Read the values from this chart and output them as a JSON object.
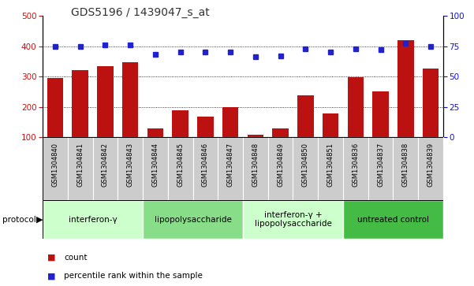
{
  "title": "GDS5196 / 1439047_s_at",
  "samples": [
    "GSM1304840",
    "GSM1304841",
    "GSM1304842",
    "GSM1304843",
    "GSM1304844",
    "GSM1304845",
    "GSM1304846",
    "GSM1304847",
    "GSM1304848",
    "GSM1304849",
    "GSM1304850",
    "GSM1304851",
    "GSM1304836",
    "GSM1304837",
    "GSM1304838",
    "GSM1304839"
  ],
  "counts": [
    295,
    320,
    335,
    348,
    128,
    190,
    168,
    200,
    108,
    130,
    238,
    178,
    297,
    250,
    420,
    325
  ],
  "percentiles": [
    75,
    75,
    76,
    76,
    68,
    70,
    70,
    70,
    66,
    67,
    73,
    70,
    73,
    72,
    77,
    75
  ],
  "groups": [
    {
      "label": "interferon-γ",
      "start": 0,
      "end": 4,
      "color": "#ccffcc"
    },
    {
      "label": "lipopolysaccharide",
      "start": 4,
      "end": 8,
      "color": "#88dd88"
    },
    {
      "label": "interferon-γ +\nlipopolysaccharide",
      "start": 8,
      "end": 12,
      "color": "#ccffcc"
    },
    {
      "label": "untreated control",
      "start": 12,
      "end": 16,
      "color": "#44bb44"
    }
  ],
  "ylim_left": [
    100,
    500
  ],
  "ylim_right": [
    0,
    100
  ],
  "yticks_left": [
    100,
    200,
    300,
    400,
    500
  ],
  "yticks_right": [
    0,
    25,
    50,
    75,
    100
  ],
  "bar_color": "#bb1111",
  "dot_color": "#2222cc",
  "bar_width": 0.65,
  "title_fontsize": 10,
  "sample_label_fontsize": 6,
  "group_label_fontsize": 7.5
}
